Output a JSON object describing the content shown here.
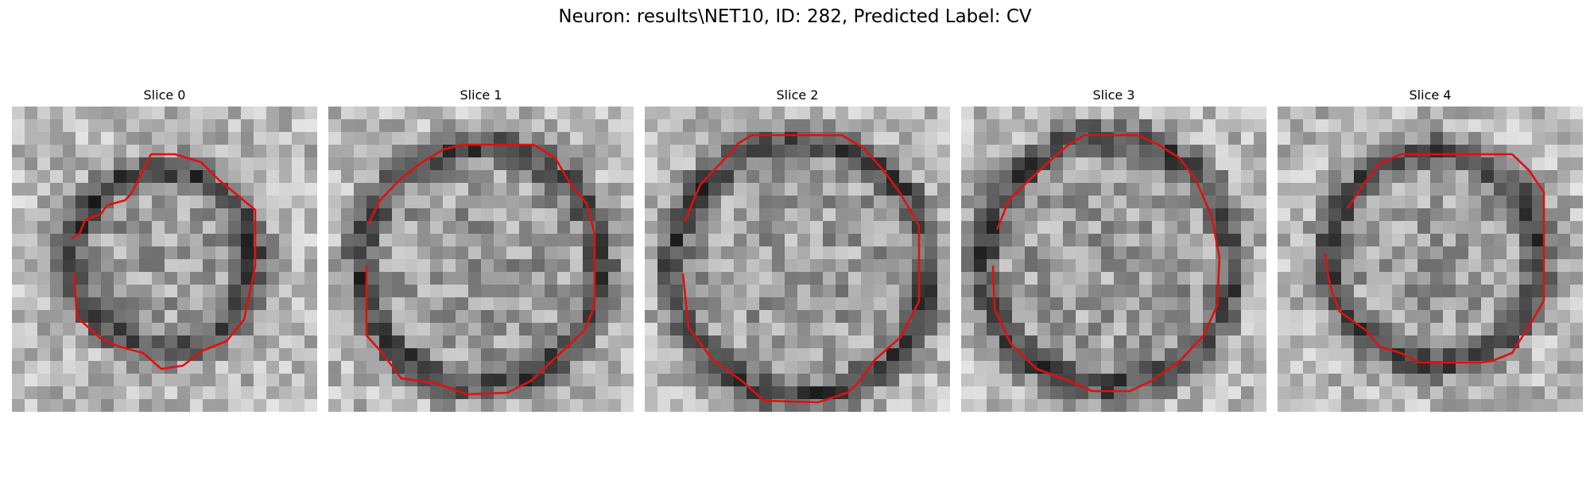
{
  "figure": {
    "title": "Neuron: results\\NET10, ID: 282, Predicted Label: CV"
  },
  "panels": [
    {
      "title": "Slice 0"
    },
    {
      "title": "Slice 1"
    },
    {
      "title": "Slice 2"
    },
    {
      "title": "Slice 3"
    },
    {
      "title": "Slice 4"
    }
  ],
  "contour_color": "#e01010"
}
